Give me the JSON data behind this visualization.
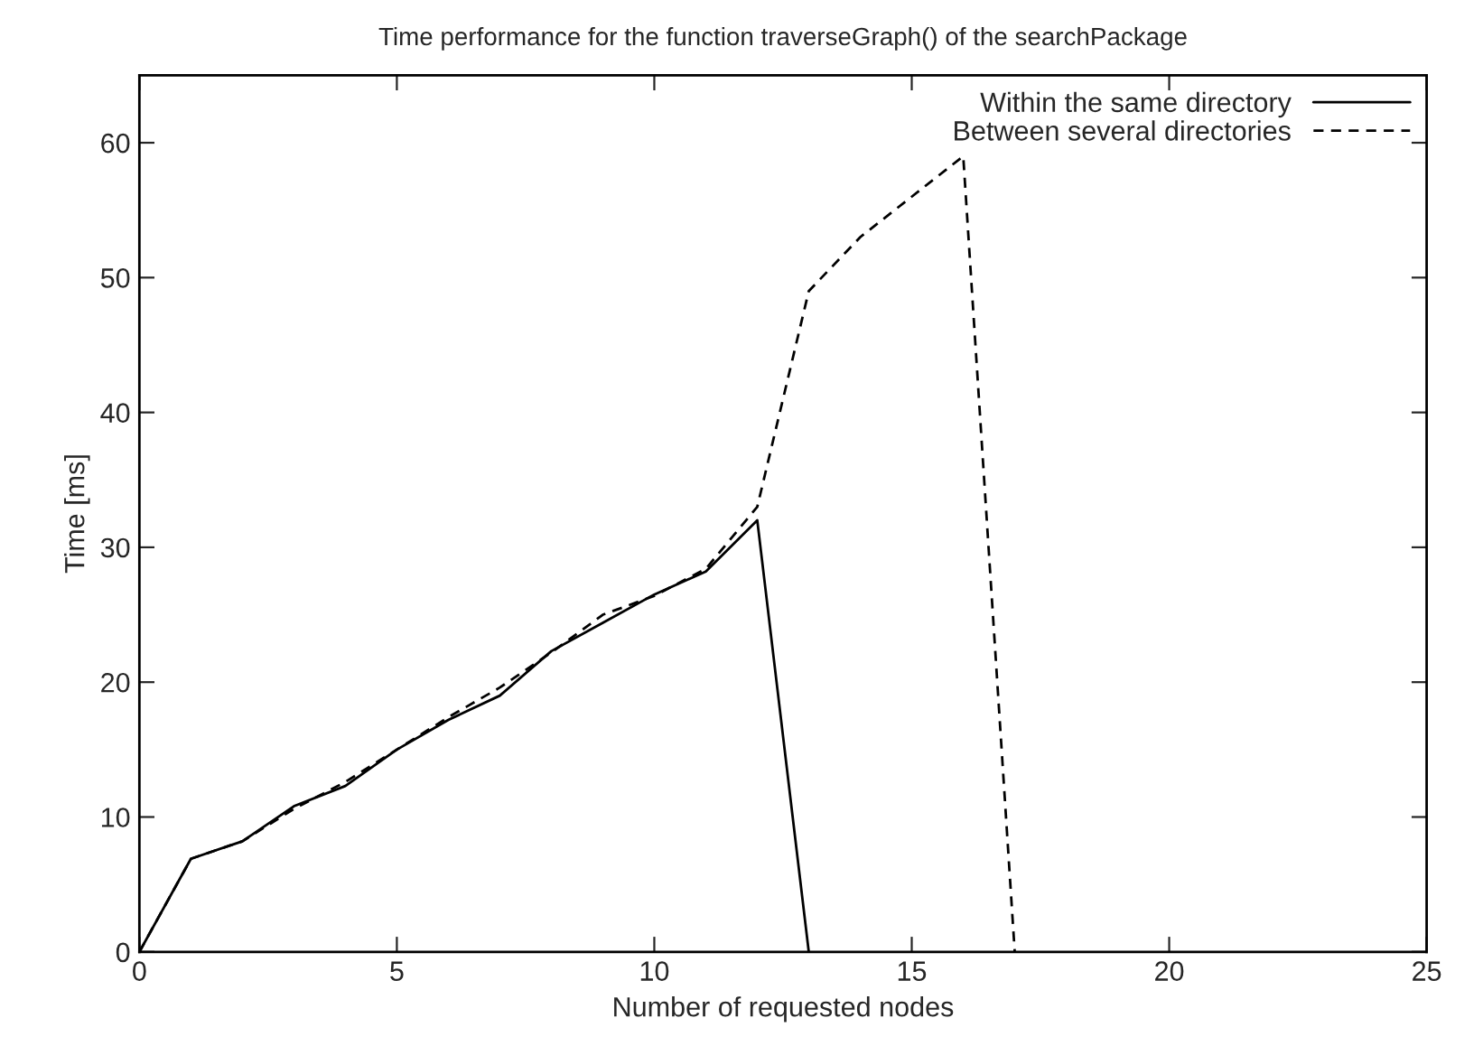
{
  "chart_data": {
    "type": "line",
    "title": "Time performance for the function traverseGraph() of the searchPackage",
    "xlabel": "Number of requested nodes",
    "ylabel": "Time [ms]",
    "xlim": [
      0,
      25
    ],
    "xticks": [
      0,
      5,
      10,
      15,
      20,
      25
    ],
    "ylim": [
      0,
      65
    ],
    "yticks": [
      0,
      10,
      20,
      30,
      40,
      50,
      60
    ],
    "grid": false,
    "legend": "top right",
    "series": [
      {
        "name": "Within the same directory",
        "color": "#000000",
        "line_style": "solid",
        "x": [
          0,
          1,
          2,
          3,
          4,
          5,
          6,
          7,
          8,
          9,
          10,
          11,
          12,
          13
        ],
        "values": [
          0,
          6.9,
          8.2,
          10.8,
          12.3,
          15,
          17.2,
          19,
          22.3,
          24.4,
          26.5,
          28.2,
          32,
          0
        ]
      },
      {
        "name": "Between several directories",
        "color": "#000000",
        "line_style": "dashed",
        "x": [
          0,
          1,
          2,
          3,
          4,
          5,
          6,
          7,
          8,
          9,
          10,
          11,
          12,
          13,
          14,
          15,
          16,
          17
        ],
        "values": [
          0,
          6.9,
          8.2,
          10.6,
          12.6,
          15,
          17.4,
          19.6,
          22.2,
          25,
          26.4,
          28.4,
          33,
          49,
          53,
          56,
          59,
          0
        ]
      }
    ]
  }
}
